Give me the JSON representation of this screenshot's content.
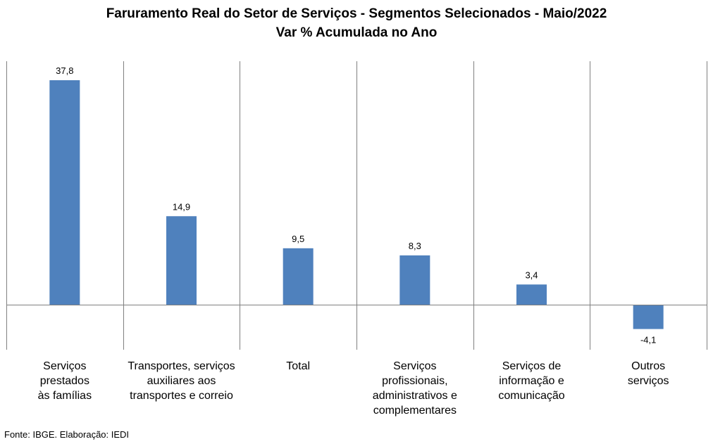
{
  "chart_data": {
    "type": "bar",
    "title": "Faruramento Real do Setor de Serviços - Segmentos Selecionados - Maio/2022",
    "subtitle": "Var % Acumulada no Ano",
    "categories": [
      "Serviços prestados às famílias",
      "Transportes, serviços auxiliares aos transportes e correio",
      "Total",
      "Serviços profissionais, administrativos e complementares",
      "Serviços de informação e comunicação",
      "Outros serviços"
    ],
    "category_lines": [
      [
        "Serviços",
        "prestados",
        "às famílias"
      ],
      [
        "Transportes, serviços",
        "auxiliares aos",
        "transportes e correio"
      ],
      [
        "Total"
      ],
      [
        "Serviços",
        "profissionais,",
        "administrativos e",
        "complementares"
      ],
      [
        "Serviços de",
        "informação e",
        "comunicação"
      ],
      [
        "Outros",
        "serviços"
      ]
    ],
    "values": [
      37.8,
      14.9,
      9.5,
      8.3,
      3.4,
      -4.1
    ],
    "value_labels": [
      "37,8",
      "14,9",
      "9,5",
      "8,3",
      "3,4",
      "-4,1"
    ],
    "bar_color": "#4f81bd",
    "grid": "vertical separators",
    "legend": "none"
  },
  "footer": {
    "source": "Fonte: IBGE. Elaboração: IEDI"
  }
}
